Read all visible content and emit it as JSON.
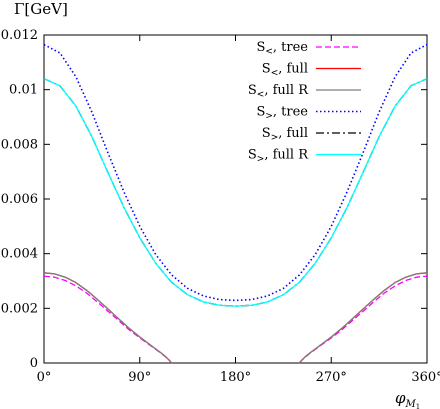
{
  "chart_data": {
    "type": "line",
    "ylabel": "Γ[GeV]",
    "xlabel_main": "φ",
    "xlabel_sub": "M",
    "xlabel_subsub": "1",
    "xlim": [
      0,
      360
    ],
    "ylim": [
      0,
      0.012
    ],
    "xticks": [
      0,
      90,
      180,
      270,
      360
    ],
    "xtick_labels": [
      "0°",
      "90°",
      "180°",
      "270°",
      "360°"
    ],
    "yticks": [
      0,
      0.002,
      0.004,
      0.006,
      0.008,
      0.01,
      0.012
    ],
    "ytick_labels": [
      "0",
      "0.002",
      "0.004",
      "0.006",
      "0.008",
      "0.01",
      "0.012"
    ],
    "grid": false,
    "legend_position": "top-right",
    "series": [
      {
        "name": "S<, tree",
        "name_base": "S",
        "name_sub": "<",
        "name_rest": ", tree",
        "color": "#ff00ff",
        "dash": "dashed",
        "segments": [
          {
            "x": [
              0,
              10,
              20,
              30,
              40,
              50,
              60,
              70,
              80,
              90,
              100,
              110,
              115,
              118,
              120
            ],
            "y": [
              0.00318,
              0.00314,
              0.00302,
              0.00282,
              0.00256,
              0.00224,
              0.0019,
              0.00156,
              0.00122,
              0.00092,
              0.00064,
              0.00036,
              0.0002,
              9e-05,
              0
            ]
          },
          {
            "x": [
              240,
              242,
              245,
              250,
              260,
              270,
              280,
              290,
              300,
              310,
              320,
              330,
              340,
              350,
              360
            ],
            "y": [
              0,
              9e-05,
              0.0002,
              0.00036,
              0.00064,
              0.00092,
              0.00122,
              0.00156,
              0.0019,
              0.00224,
              0.00256,
              0.00282,
              0.00302,
              0.00314,
              0.00318
            ]
          }
        ]
      },
      {
        "name": "S<, full",
        "name_base": "S",
        "name_sub": "<",
        "name_rest": ", full",
        "color": "#ff0000",
        "dash": "solid",
        "segments": [
          {
            "x": [
              0,
              10,
              20,
              30,
              40,
              50,
              60,
              70,
              80,
              90,
              100,
              110,
              115,
              118,
              120
            ],
            "y": [
              0.0033,
              0.00326,
              0.00314,
              0.00294,
              0.00266,
              0.00233,
              0.00198,
              0.00162,
              0.00127,
              0.00095,
              0.00066,
              0.00037,
              0.00021,
              9e-05,
              0
            ]
          },
          {
            "x": [
              240,
              242,
              245,
              250,
              260,
              270,
              280,
              290,
              300,
              310,
              320,
              330,
              340,
              350,
              360
            ],
            "y": [
              0,
              9e-05,
              0.00021,
              0.00037,
              0.00066,
              0.00095,
              0.00127,
              0.00162,
              0.00198,
              0.00233,
              0.00266,
              0.00294,
              0.00314,
              0.00326,
              0.0033
            ]
          }
        ]
      },
      {
        "name": "S<, full R",
        "name_base": "S",
        "name_sub": "<",
        "name_rest": ", full R",
        "color": "#7f7f7f",
        "dash": "solid",
        "segments": [
          {
            "x": [
              0,
              10,
              20,
              30,
              40,
              50,
              60,
              70,
              80,
              90,
              100,
              110,
              115,
              118,
              120
            ],
            "y": [
              0.0033,
              0.00326,
              0.00314,
              0.00294,
              0.00266,
              0.00233,
              0.00198,
              0.00162,
              0.00127,
              0.00095,
              0.00066,
              0.00037,
              0.00021,
              9e-05,
              0
            ]
          },
          {
            "x": [
              240,
              242,
              245,
              250,
              260,
              270,
              280,
              290,
              300,
              310,
              320,
              330,
              340,
              350,
              360
            ],
            "y": [
              0,
              9e-05,
              0.00021,
              0.00037,
              0.00066,
              0.00095,
              0.00127,
              0.00162,
              0.00198,
              0.00233,
              0.00266,
              0.00294,
              0.00314,
              0.00326,
              0.0033
            ]
          }
        ]
      },
      {
        "name": "S>, tree",
        "name_base": "S",
        "name_sub": ">",
        "name_rest": ", tree",
        "color": "#0000ff",
        "dash": "dotted",
        "segments": [
          {
            "x": [
              0,
              15,
              30,
              45,
              60,
              75,
              90,
              105,
              120,
              135,
              150,
              165,
              180,
              195,
              210,
              225,
              240,
              255,
              270,
              285,
              300,
              315,
              330,
              345,
              360
            ],
            "y": [
              0.01165,
              0.01134,
              0.01047,
              0.00918,
              0.0077,
              0.00627,
              0.005,
              0.00397,
              0.00322,
              0.00273,
              0.00245,
              0.00232,
              0.00229,
              0.00232,
              0.00245,
              0.00273,
              0.00322,
              0.00397,
              0.005,
              0.00627,
              0.0077,
              0.00918,
              0.01047,
              0.01134,
              0.01165
            ]
          }
        ]
      },
      {
        "name": "S>, full",
        "name_base": "S",
        "name_sub": ">",
        "name_rest": ", full",
        "color": "#000000",
        "dash": "dashdot",
        "segments": [
          {
            "x": [
              0,
              15,
              30,
              45,
              60,
              75,
              90,
              105,
              120,
              135,
              150,
              165,
              180,
              195,
              210,
              225,
              240,
              255,
              270,
              285,
              300,
              315,
              330,
              345,
              360
            ],
            "y": [
              0.0104,
              0.01014,
              0.0094,
              0.00828,
              0.00698,
              0.0057,
              0.00458,
              0.00365,
              0.00295,
              0.0025,
              0.00223,
              0.00211,
              0.00208,
              0.00211,
              0.00223,
              0.0025,
              0.00295,
              0.00365,
              0.00458,
              0.0057,
              0.00698,
              0.00828,
              0.0094,
              0.01014,
              0.0104
            ]
          }
        ]
      },
      {
        "name": "S>, full R",
        "name_base": "S",
        "name_sub": ">",
        "name_rest": ", full R",
        "color": "#00ffff",
        "dash": "solid",
        "segments": [
          {
            "x": [
              0,
              15,
              30,
              45,
              60,
              75,
              90,
              105,
              120,
              135,
              150,
              165,
              180,
              195,
              210,
              225,
              240,
              255,
              270,
              285,
              300,
              315,
              330,
              345,
              360
            ],
            "y": [
              0.0104,
              0.01014,
              0.0094,
              0.00828,
              0.00698,
              0.0057,
              0.00458,
              0.00365,
              0.00295,
              0.0025,
              0.00223,
              0.00211,
              0.00208,
              0.00211,
              0.00223,
              0.0025,
              0.00295,
              0.00365,
              0.00458,
              0.0057,
              0.00698,
              0.00828,
              0.0094,
              0.01014,
              0.0104
            ]
          }
        ]
      }
    ]
  }
}
